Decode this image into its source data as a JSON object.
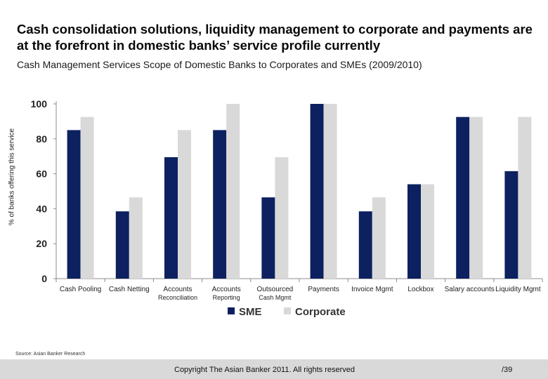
{
  "slide": {
    "title": "Cash consolidation solutions, liquidity management to corporate and payments are at the forefront in domestic banks’ service profile currently",
    "subtitle": "Cash Management Services Scope of Domestic Banks to Corporates and SMEs (2009/2010)",
    "source": "Source: Asian Banker Research",
    "copyright": "Copyright The Asian Banker 2011. All rights reserved",
    "page_number": "/39"
  },
  "chart_data": {
    "type": "bar",
    "title": "Cash Management Services Scope of Domestic Banks to Corporates and SMEs (2009/2010)",
    "xlabel": "",
    "ylabel": "% of banks offering this service",
    "ylim": [
      0,
      100
    ],
    "yticks": [
      0,
      20,
      40,
      60,
      80,
      100
    ],
    "grid": false,
    "legend_position": "bottom-center",
    "categories": [
      [
        "Cash Pooling"
      ],
      [
        "Cash Netting"
      ],
      [
        "Accounts",
        "Reconciliation"
      ],
      [
        "Accounts",
        "Reporting"
      ],
      [
        "Outsourced",
        "Cash Mgmt"
      ],
      [
        "Payments"
      ],
      [
        "Invoice Mgmt"
      ],
      [
        "Lockbox"
      ],
      [
        "Salary accounts"
      ],
      [
        "Liquidity Mgmt"
      ]
    ],
    "series": [
      {
        "name": "SME",
        "color": "#0d2060",
        "values": [
          85,
          38.5,
          69.5,
          85,
          46.5,
          100,
          38.5,
          54,
          92.5,
          61.5
        ]
      },
      {
        "name": "Corporate",
        "color": "#d9d9d9",
        "values": [
          92.5,
          46.5,
          85,
          100,
          69.5,
          100,
          46.5,
          54,
          92.5,
          92.5
        ]
      }
    ]
  }
}
